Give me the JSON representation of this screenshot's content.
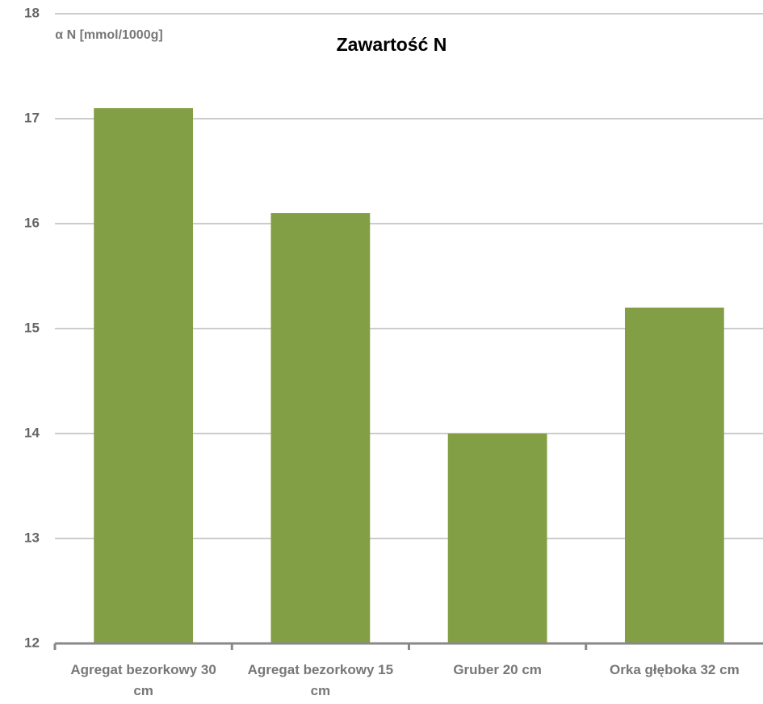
{
  "chart_data": {
    "type": "bar",
    "title": "Zawartość N",
    "y_label": "α N [mmol/1000g]",
    "categories": [
      "Agregat bezorkowy 30 cm",
      "Agregat bezorkowy 15 cm",
      "Gruber 20 cm",
      "Orka głęboka 32 cm"
    ],
    "values": [
      17.1,
      16.1,
      14.0,
      15.2
    ],
    "color": "#839f45",
    "ylim": [
      12,
      18
    ],
    "yticks": [
      12,
      13,
      14,
      15,
      16,
      17,
      18
    ],
    "grid": true
  }
}
